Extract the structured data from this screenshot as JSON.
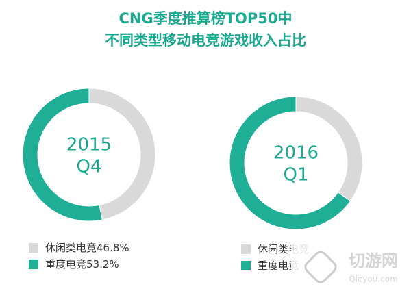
{
  "title": [
    "CNG季度推算榜TOP50中",
    "不同类型移动电竞游戏收入占比"
  ],
  "chart_data": [
    {
      "type": "donut",
      "center_label": [
        "2015",
        "Q4"
      ],
      "categories": [
        "休闲类电竞",
        "重度电竞"
      ],
      "values": [
        46.8,
        53.2
      ],
      "value_labels": [
        "46.8%",
        "53.2%"
      ],
      "colors": [
        "#d9d9d9",
        "#1fae96"
      ]
    },
    {
      "type": "donut",
      "center_label": [
        "2016",
        "Q1"
      ],
      "categories": [
        "休闲类电竞",
        "重度电竞"
      ],
      "values": [
        34.7,
        65.3
      ],
      "colors": [
        "#d9d9d9",
        "#1fae96"
      ]
    }
  ],
  "watermark": {
    "name": "切游网",
    "site": "Qieyou.com"
  }
}
